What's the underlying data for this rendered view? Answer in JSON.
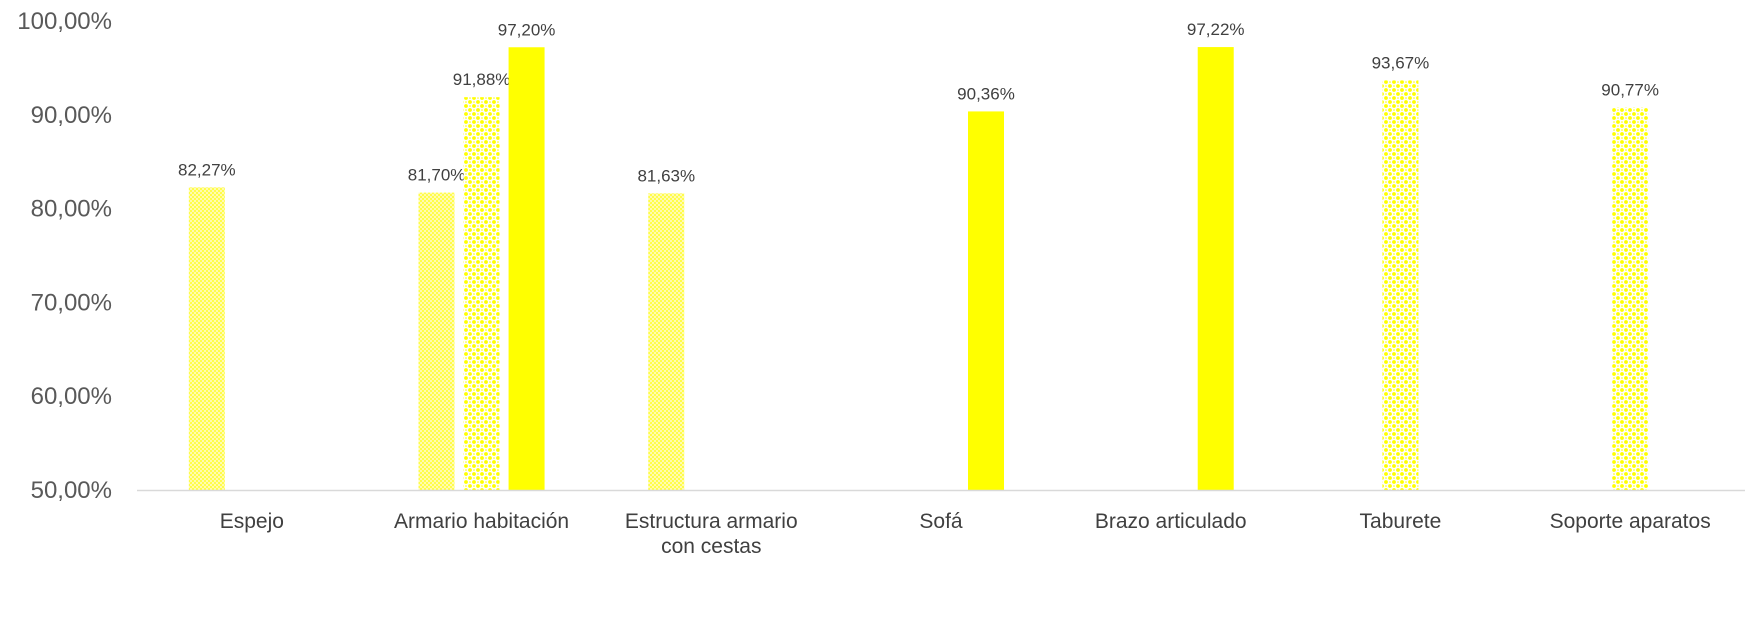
{
  "chart_data": {
    "type": "bar",
    "title": "",
    "xlabel": "",
    "ylabel": "",
    "ylim": [
      0.5,
      1.0
    ],
    "y_ticks": [
      "50,00%",
      "60,00%",
      "70,00%",
      "80,00%",
      "90,00%",
      "100,00%"
    ],
    "grid": false,
    "legend": "none",
    "categories": [
      [
        "Espejo"
      ],
      [
        "Armario habitación"
      ],
      [
        "Estructura armario",
        "con cestas"
      ],
      [
        "Sofá"
      ],
      [
        "Brazo articulado"
      ],
      [
        "Taburete"
      ],
      [
        "Soporte aparatos"
      ]
    ],
    "colors": {
      "bar": "#ffff00",
      "axis": "#d9d9d9"
    },
    "series": [
      {
        "pattern": "fine-dots",
        "values": [
          0.8227,
          0.817,
          0.8163,
          null,
          null,
          null,
          null
        ],
        "labels": [
          "82,27%",
          "81,70%",
          "81,63%",
          "",
          "",
          "",
          ""
        ]
      },
      {
        "pattern": "coarse-dots",
        "values": [
          null,
          0.9188,
          null,
          null,
          null,
          0.9367,
          0.9077
        ],
        "labels": [
          "",
          "91,88%",
          "",
          "",
          "",
          "93,67%",
          "90,77%"
        ]
      },
      {
        "pattern": "solid",
        "values": [
          null,
          0.972,
          null,
          0.9036,
          0.9722,
          null,
          null
        ],
        "labels": [
          "",
          "97,20%",
          "",
          "90,36%",
          "97,22%",
          "",
          ""
        ]
      }
    ]
  }
}
